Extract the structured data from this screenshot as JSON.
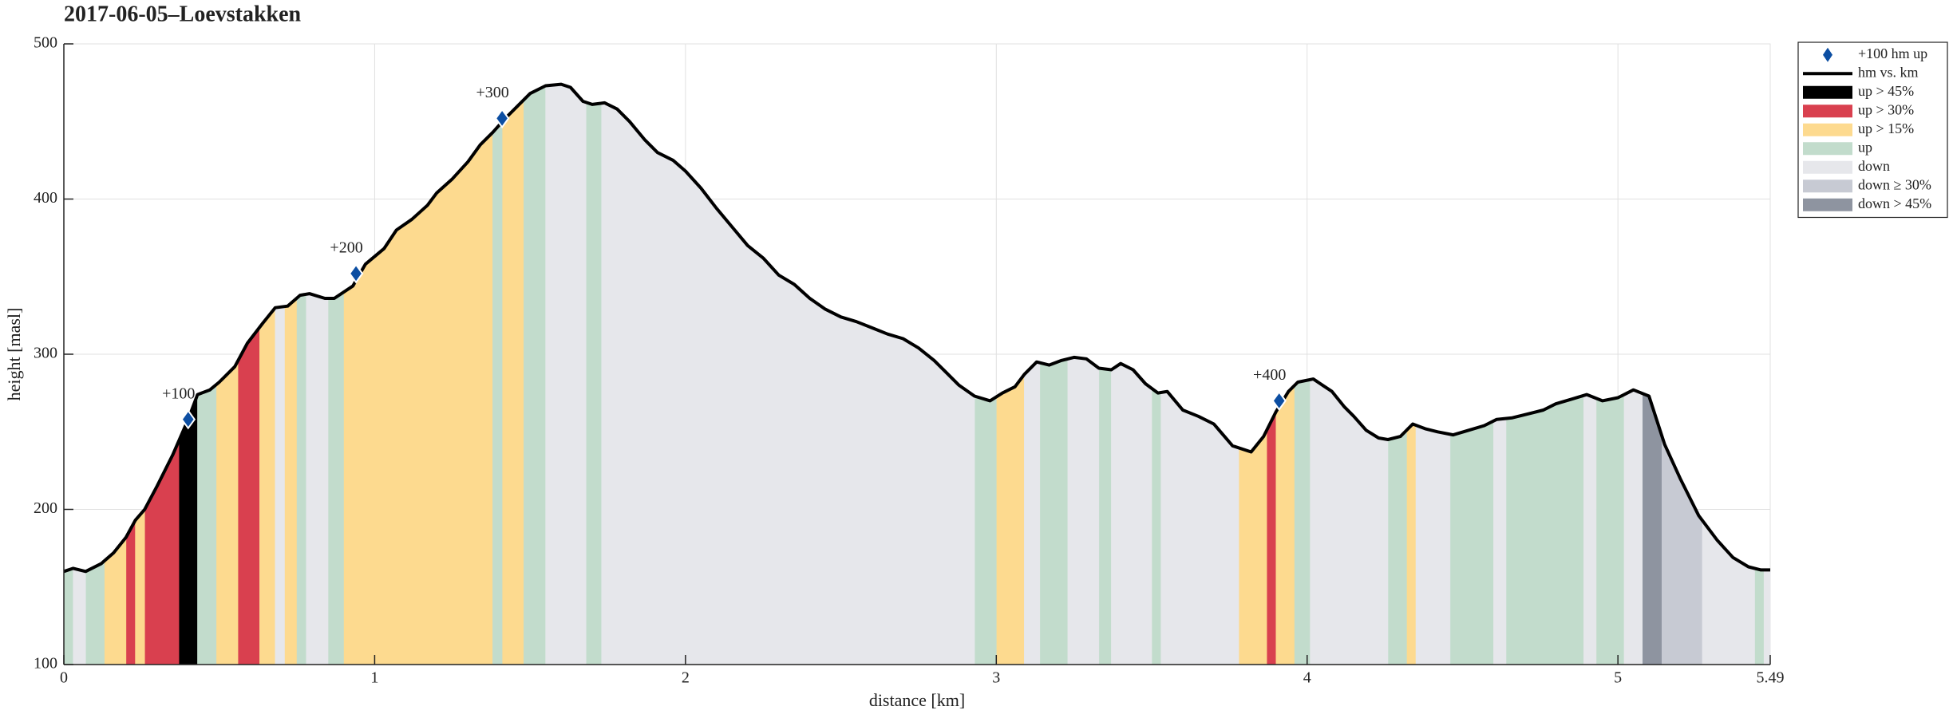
{
  "chart_data": {
    "type": "elevation-profile",
    "title": "2017-06-05–Loevstakken",
    "xlabel": "distance [km]",
    "ylabel": "height [masl]",
    "xlim": [
      0,
      5.49
    ],
    "xticks": [
      0,
      1,
      2,
      3,
      4,
      5,
      5.49
    ],
    "ylim": [
      100,
      500
    ],
    "yticks": [
      100,
      200,
      300,
      400,
      500
    ],
    "grid": true,
    "legend": "outside right",
    "markers": {
      "name": "+100 hm up",
      "color": "#0c4ea2",
      "x": [
        0.4,
        0.94,
        1.41,
        3.91
      ],
      "values": [
        258,
        352,
        452,
        270
      ],
      "labels": [
        "+100",
        "+200",
        "+300",
        "+400"
      ]
    },
    "profile": {
      "name": "hm vs. km",
      "color": "#000000",
      "x": [
        0,
        0.03,
        0.07,
        0.12,
        0.16,
        0.2,
        0.23,
        0.26,
        0.3,
        0.35,
        0.4,
        0.43,
        0.47,
        0.5,
        0.55,
        0.59,
        0.64,
        0.68,
        0.72,
        0.76,
        0.79,
        0.84,
        0.87,
        0.93,
        0.97,
        1.03,
        1.07,
        1.12,
        1.17,
        1.2,
        1.25,
        1.3,
        1.34,
        1.38,
        1.42,
        1.46,
        1.5,
        1.55,
        1.6,
        1.63,
        1.67,
        1.7,
        1.74,
        1.78,
        1.82,
        1.87,
        1.91,
        1.96,
        2.0,
        2.05,
        2.1,
        2.15,
        2.2,
        2.25,
        2.3,
        2.35,
        2.4,
        2.45,
        2.5,
        2.55,
        2.6,
        2.65,
        2.7,
        2.75,
        2.8,
        2.84,
        2.88,
        2.93,
        2.98,
        3.02,
        3.06,
        3.09,
        3.13,
        3.17,
        3.21,
        3.25,
        3.29,
        3.33,
        3.37,
        3.4,
        3.44,
        3.48,
        3.52,
        3.55,
        3.6,
        3.65,
        3.7,
        3.76,
        3.82,
        3.86,
        3.9,
        3.94,
        3.97,
        4.02,
        4.05,
        4.08,
        4.12,
        4.15,
        4.19,
        4.23,
        4.26,
        4.3,
        4.34,
        4.38,
        4.42,
        4.47,
        4.52,
        4.57,
        4.61,
        4.66,
        4.72,
        4.76,
        4.8,
        4.85,
        4.9,
        4.95,
        5.0,
        5.05,
        5.1,
        5.15,
        5.2,
        5.26,
        5.32,
        5.37,
        5.42,
        5.46,
        5.49
      ],
      "values": [
        160,
        162,
        160,
        165,
        172,
        182,
        193,
        200,
        215,
        235,
        258,
        274,
        277,
        282,
        292,
        307,
        320,
        330,
        331,
        338,
        339,
        336,
        336,
        344,
        358,
        368,
        380,
        387,
        396,
        404,
        413,
        424,
        435,
        443,
        452,
        460,
        468,
        473,
        474,
        472,
        463,
        461,
        462,
        458,
        450,
        438,
        430,
        425,
        418,
        407,
        394,
        382,
        370,
        362,
        351,
        345,
        336,
        329,
        324,
        321,
        317,
        313,
        310,
        304,
        296,
        288,
        280,
        273,
        270,
        275,
        279,
        287,
        295,
        293,
        296,
        298,
        297,
        291,
        290,
        294,
        290,
        281,
        275,
        276,
        264,
        260,
        255,
        241,
        237,
        247,
        263,
        276,
        282,
        284,
        280,
        276,
        266,
        260,
        251,
        246,
        245,
        247,
        255,
        252,
        250,
        248,
        251,
        254,
        258,
        259,
        262,
        264,
        268,
        271,
        274,
        270,
        272,
        277,
        273,
        242,
        220,
        196,
        180,
        169,
        163,
        161,
        161
      ]
    },
    "classes": [
      {
        "name": "up > 45%",
        "color": "#000000",
        "ranges": [
          [
            0.37,
            0.43
          ]
        ]
      },
      {
        "name": "up > 30%",
        "color": "#d9404f",
        "ranges": [
          [
            0.2,
            0.23
          ],
          [
            0.26,
            0.37
          ],
          [
            0.56,
            0.63
          ],
          [
            3.87,
            3.9
          ]
        ]
      },
      {
        "name": "up > 15%",
        "color": "#fdda8f",
        "ranges": [
          [
            0.13,
            0.2
          ],
          [
            0.23,
            0.26
          ],
          [
            0.49,
            0.56
          ],
          [
            0.63,
            0.68
          ],
          [
            0.71,
            0.75
          ],
          [
            0.9,
            1.38
          ],
          [
            1.41,
            1.48
          ],
          [
            3.0,
            3.09
          ],
          [
            3.78,
            3.87
          ],
          [
            3.9,
            3.96
          ],
          [
            4.32,
            4.35
          ]
        ]
      },
      {
        "name": "up",
        "color": "#c2dccc",
        "ranges": [
          [
            0,
            0.03
          ],
          [
            0.07,
            0.13
          ],
          [
            0.43,
            0.49
          ],
          [
            0.75,
            0.78
          ],
          [
            0.85,
            0.9
          ],
          [
            1.38,
            1.41
          ],
          [
            1.48,
            1.55
          ],
          [
            1.68,
            1.73
          ],
          [
            2.93,
            3.0
          ],
          [
            3.14,
            3.23
          ],
          [
            3.33,
            3.37
          ],
          [
            3.5,
            3.53
          ],
          [
            3.96,
            4.01
          ],
          [
            4.26,
            4.32
          ],
          [
            4.46,
            4.6
          ],
          [
            4.64,
            4.89
          ],
          [
            4.93,
            5.02
          ],
          [
            5.44,
            5.47
          ]
        ]
      },
      {
        "name": "down",
        "color": "#e6e7eb",
        "ranges": [
          [
            0.03,
            0.07
          ],
          [
            0.68,
            0.71
          ],
          [
            0.78,
            0.85
          ],
          [
            1.55,
            1.68
          ],
          [
            1.73,
            2.93
          ],
          [
            3.09,
            3.14
          ],
          [
            3.23,
            3.33
          ],
          [
            3.37,
            3.5
          ],
          [
            3.53,
            3.78
          ],
          [
            4.01,
            4.26
          ],
          [
            4.35,
            4.46
          ],
          [
            4.6,
            4.64
          ],
          [
            4.89,
            4.93
          ],
          [
            5.02,
            5.08
          ],
          [
            5.27,
            5.44
          ],
          [
            5.47,
            5.49
          ]
        ]
      },
      {
        "name": "down ≥ 30%",
        "color": "#c7cad3",
        "ranges": [
          [
            5.14,
            5.27
          ]
        ]
      },
      {
        "name": "down > 45%",
        "color": "#8e94a0",
        "ranges": [
          [
            5.08,
            5.14
          ]
        ]
      }
    ]
  }
}
